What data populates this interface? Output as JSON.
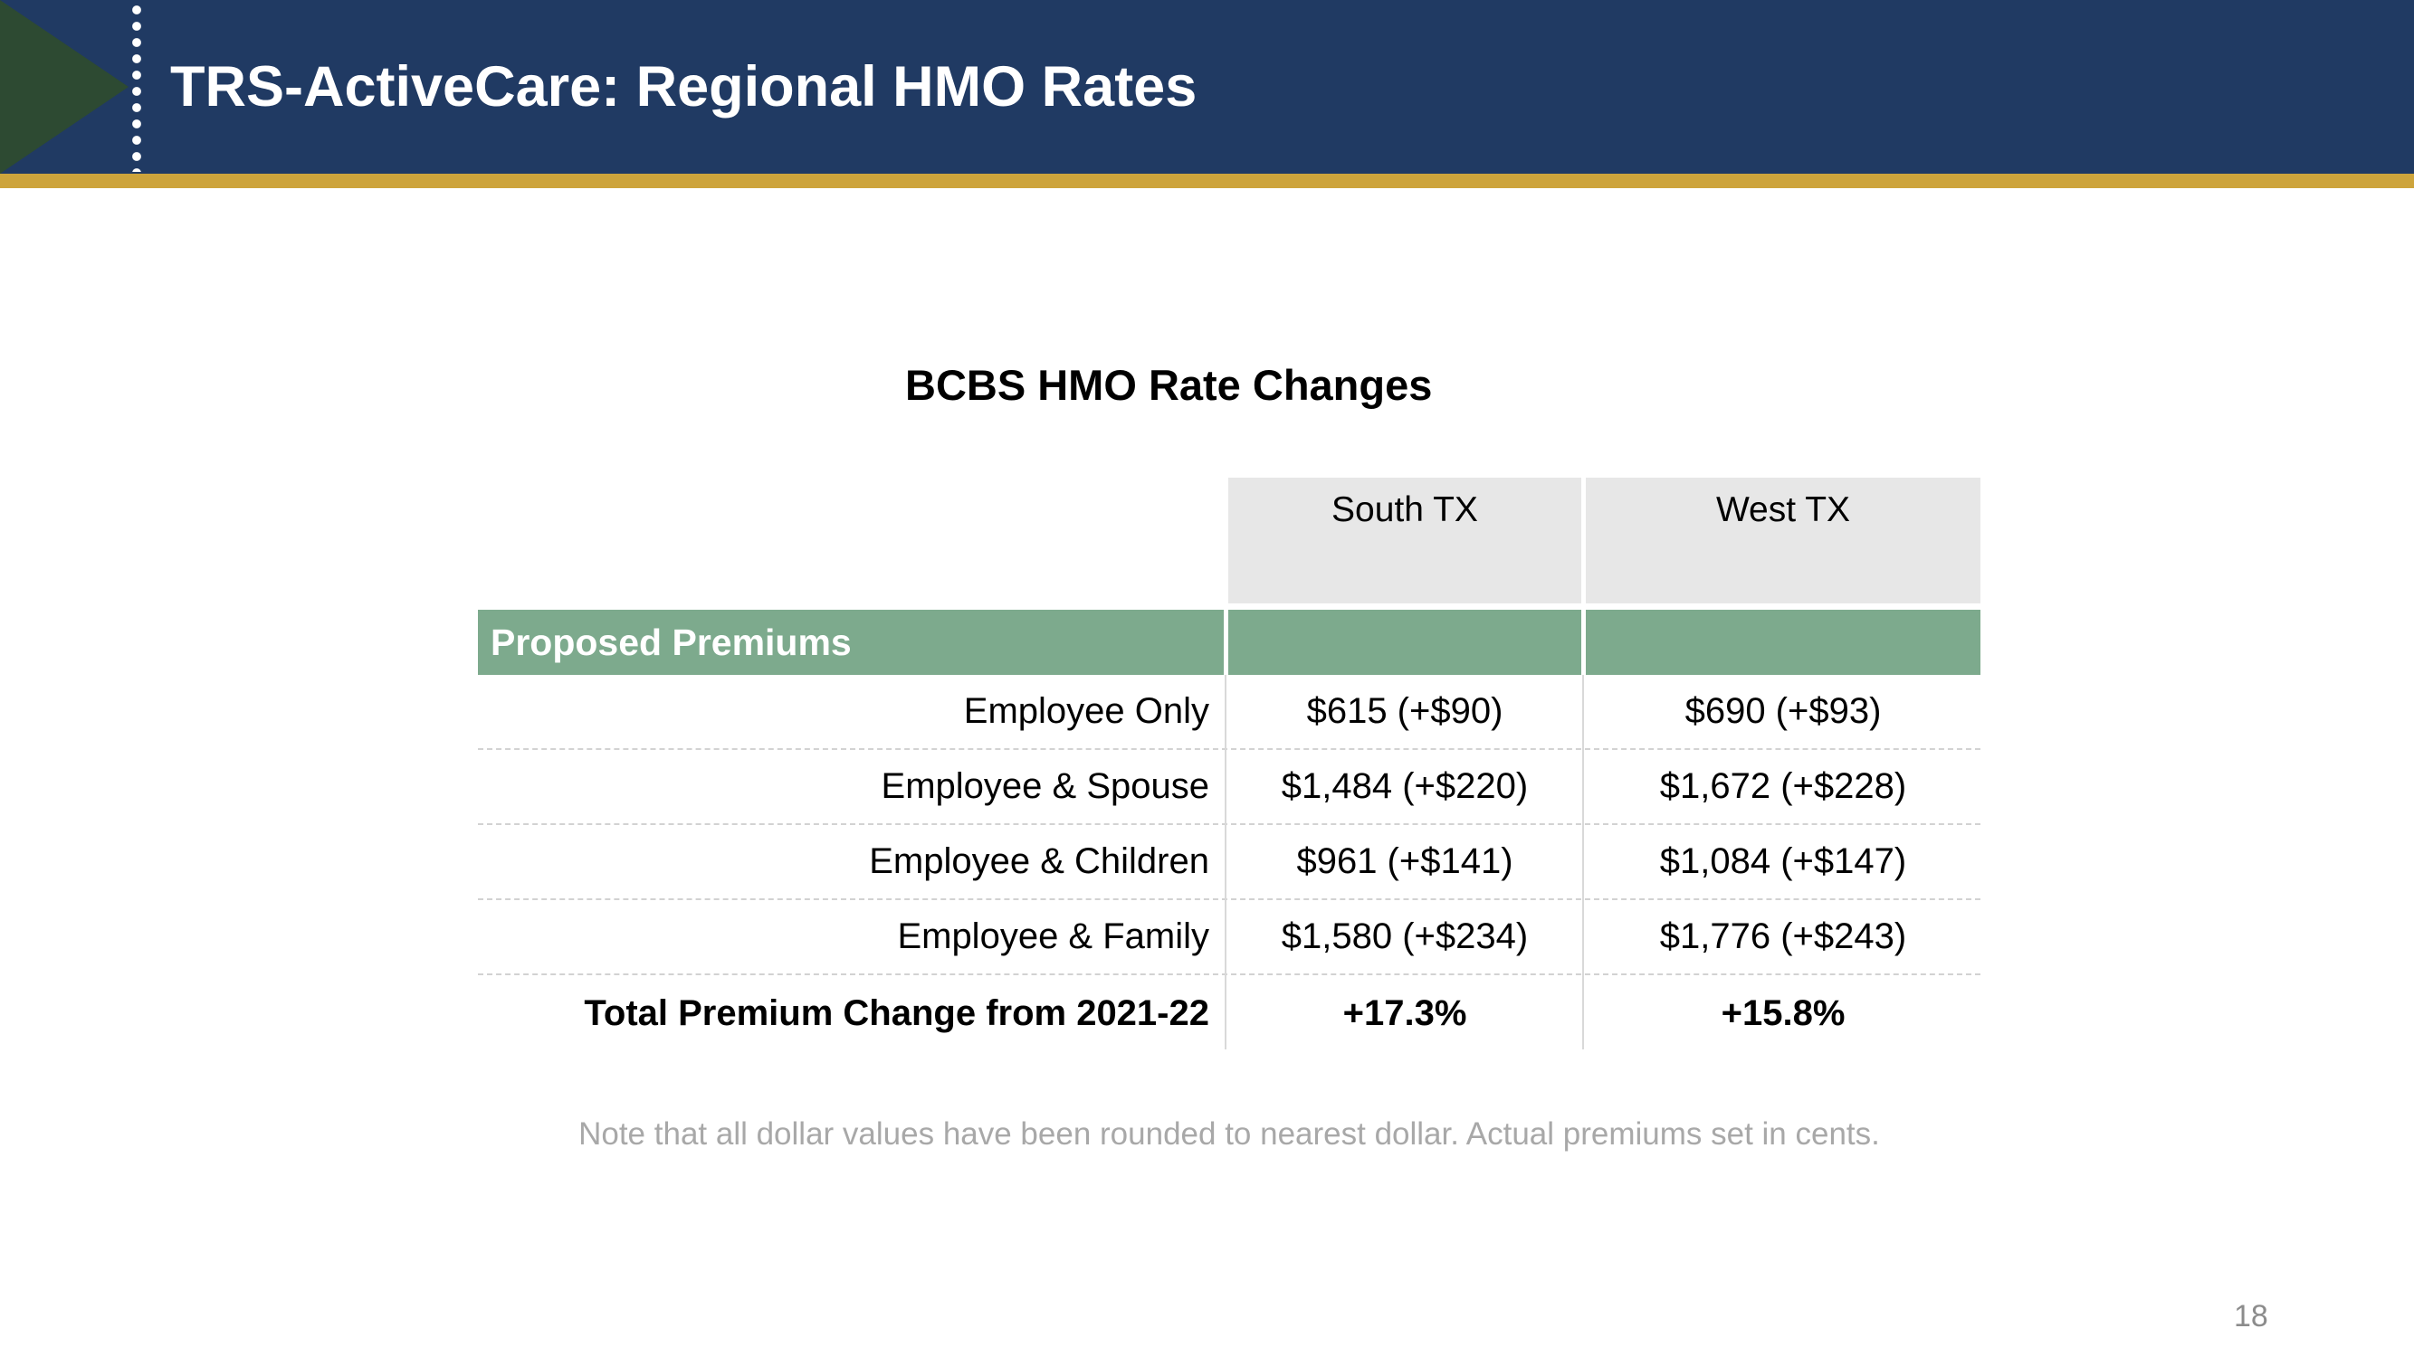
{
  "header": {
    "title": "TRS-ActiveCare: Regional HMO Rates"
  },
  "table": {
    "title": "BCBS HMO Rate Changes",
    "columns": [
      "South TX",
      "West TX"
    ],
    "section_label": "Proposed Premiums",
    "rows": [
      {
        "label": "Employee Only",
        "south": "$615 (+$90)",
        "west": "$690 (+$93)"
      },
      {
        "label": "Employee & Spouse",
        "south": "$1,484 (+$220)",
        "west": "$1,672 (+$228)"
      },
      {
        "label": "Employee & Children",
        "south": "$961 (+$141)",
        "west": "$1,084 (+$147)"
      },
      {
        "label": "Employee & Family",
        "south": "$1,580 (+$234)",
        "west": "$1,776 (+$243)"
      }
    ],
    "total_row": {
      "label": "Total Premium Change from 2021-22",
      "south": "+17.3%",
      "west": "+15.8%"
    }
  },
  "chart_data": {
    "type": "table",
    "title": "BCBS HMO Rate Changes",
    "columns": [
      "",
      "South TX",
      "West TX"
    ],
    "rows": [
      [
        "Proposed Premiums",
        "",
        ""
      ],
      [
        "Employee Only",
        "$615 (+$90)",
        "$690 (+$93)"
      ],
      [
        "Employee & Spouse",
        "$1,484 (+$220)",
        "$1,672 (+$228)"
      ],
      [
        "Employee & Children",
        "$961 (+$141)",
        "$1,084 (+$147)"
      ],
      [
        "Employee & Family",
        "$1,580 (+$234)",
        "$1,776 (+$243)"
      ],
      [
        "Total Premium Change from 2021-22",
        "+17.3%",
        "+15.8%"
      ]
    ]
  },
  "note": "Note that all dollar values have been rounded to nearest dollar. Actual premiums set in cents.",
  "page_number": "18",
  "colors": {
    "header_navy": "#203a63",
    "gold_accent": "#cda43c",
    "triangle_green": "#2d4a32",
    "section_green": "#7daa8d",
    "column_header_gray": "#e7e7e7"
  }
}
